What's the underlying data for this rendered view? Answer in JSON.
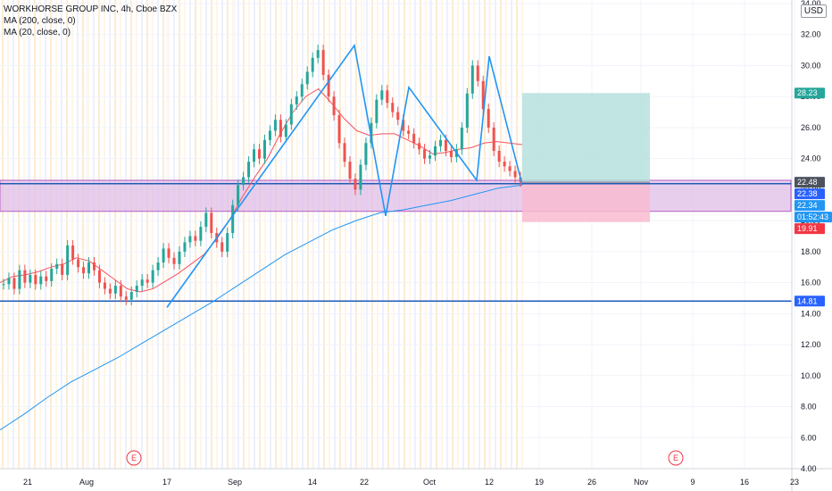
{
  "header": {
    "symbol_line": "WORKHORSE GROUP INC, 4h, Cboe BZX",
    "ma200_label": "MA (200, close, 0)",
    "ma20_label": "MA (20, close, 0)",
    "currency": "USD"
  },
  "chart_data": {
    "type": "candlestick",
    "title": "WORKHORSE GROUP INC, 4h, Cboe BZX",
    "ylim": [
      4,
      34
    ],
    "y_ticks": [
      "34.00",
      "32.00",
      "30.00",
      "28.00",
      "26.00",
      "24.00",
      "22.00",
      "20.00",
      "18.00",
      "16.00",
      "14.00",
      "12.00",
      "10.00",
      "8.00",
      "6.00",
      "4.00"
    ],
    "x_ticks": [
      "21",
      "Aug",
      "17",
      "Sep",
      "14",
      "22",
      "Oct",
      "12",
      "19",
      "26",
      "Nov",
      "9",
      "16",
      "23"
    ],
    "earnings_markers": [
      "E",
      "E"
    ],
    "candles_close_path": [
      15.9,
      16.3,
      15.6,
      16.8,
      16.0,
      16.5,
      15.9,
      16.4,
      16.1,
      16.9,
      17.2,
      16.5,
      18.4,
      17.5,
      17.0,
      16.6,
      17.3,
      16.8,
      16.0,
      15.6,
      15.3,
      15.8,
      15.1,
      14.9,
      15.4,
      15.8,
      16.2,
      16.0,
      16.8,
      17.3,
      18.2,
      17.6,
      17.2,
      18.0,
      18.6,
      19.0,
      18.7,
      19.6,
      20.5,
      19.2,
      18.6,
      18.0,
      19.2,
      21.0,
      22.3,
      22.8,
      23.8,
      24.6,
      24.0,
      25.2,
      25.8,
      26.5,
      25.4,
      26.2,
      27.5,
      28.0,
      28.8,
      29.6,
      30.5,
      31.0,
      29.4,
      28.0,
      26.8,
      25.0,
      23.8,
      22.7,
      22.0,
      23.6,
      25.0,
      26.3,
      27.8,
      28.4,
      27.6,
      27.0,
      26.5,
      25.8,
      25.6,
      25.0,
      24.6,
      24.0,
      24.2,
      24.8,
      25.2,
      24.5,
      24.1,
      24.6,
      26.0,
      28.2,
      30.0,
      29.0,
      27.2,
      26.0,
      24.5,
      23.8,
      23.5,
      23.2,
      22.8,
      22.5
    ],
    "series": [
      {
        "name": "MA (200, close, 0)",
        "color": "#2196f3",
        "values": [
          6.5,
          7.5,
          8.6,
          9.6,
          10.4,
          11.2,
          12.1,
          13.0,
          13.9,
          14.8,
          15.8,
          16.8,
          17.8,
          18.6,
          19.4,
          20.0,
          20.5,
          20.7,
          21.0,
          21.3,
          21.7,
          22.1,
          22.3
        ]
      },
      {
        "name": "MA (20, close, 0)",
        "color": "#f7525f",
        "values": [
          16.0,
          16.4,
          16.5,
          16.7,
          17.0,
          17.2,
          17.6,
          17.4,
          16.8,
          16.2,
          15.6,
          15.4,
          15.6,
          16.1,
          16.6,
          17.2,
          17.8,
          18.8,
          20.0,
          21.5,
          22.8,
          24.0,
          25.6,
          27.0,
          28.0,
          28.5,
          27.6,
          26.6,
          25.8,
          25.5,
          25.6,
          25.6,
          25.2,
          24.8,
          24.3,
          24.4,
          24.6,
          24.7,
          25.0,
          25.1,
          25.0,
          24.9
        ]
      }
    ],
    "pattern_points": [
      14.4,
      31.3,
      20.3,
      28.6,
      22.6,
      30.6,
      22.3
    ],
    "horizontal_levels": [
      22.38,
      14.81
    ],
    "zone": {
      "top": 22.6,
      "bottom": 20.6
    },
    "position": {
      "target": 28.23,
      "entry": 22.48,
      "stop": 19.91
    },
    "price_labels": [
      {
        "text": "28.23",
        "color": "#26a69a",
        "value": 28.23
      },
      {
        "text": "22.48",
        "color": "#4c525e",
        "value": 22.48
      },
      {
        "text": "22.38",
        "color": "#2962ff",
        "value": 22.38
      },
      {
        "text": "22.34",
        "color": "#2196f3",
        "value": 22.34
      },
      {
        "text": "01:52:43",
        "color": "#2196f3",
        "value": 21.3
      },
      {
        "text": "19.91",
        "color": "#f23645",
        "value": 19.91
      },
      {
        "text": "14.81",
        "color": "#2962ff",
        "value": 14.81
      }
    ],
    "colors": {
      "up": "#26a69a",
      "down": "#ef5350",
      "pattern": "#2196f3",
      "zone_fill": "#e1bee7",
      "zone_border": "#9c27b0",
      "target_fill": "#b2dfdb",
      "stop_fill": "#f8bbd0"
    }
  }
}
